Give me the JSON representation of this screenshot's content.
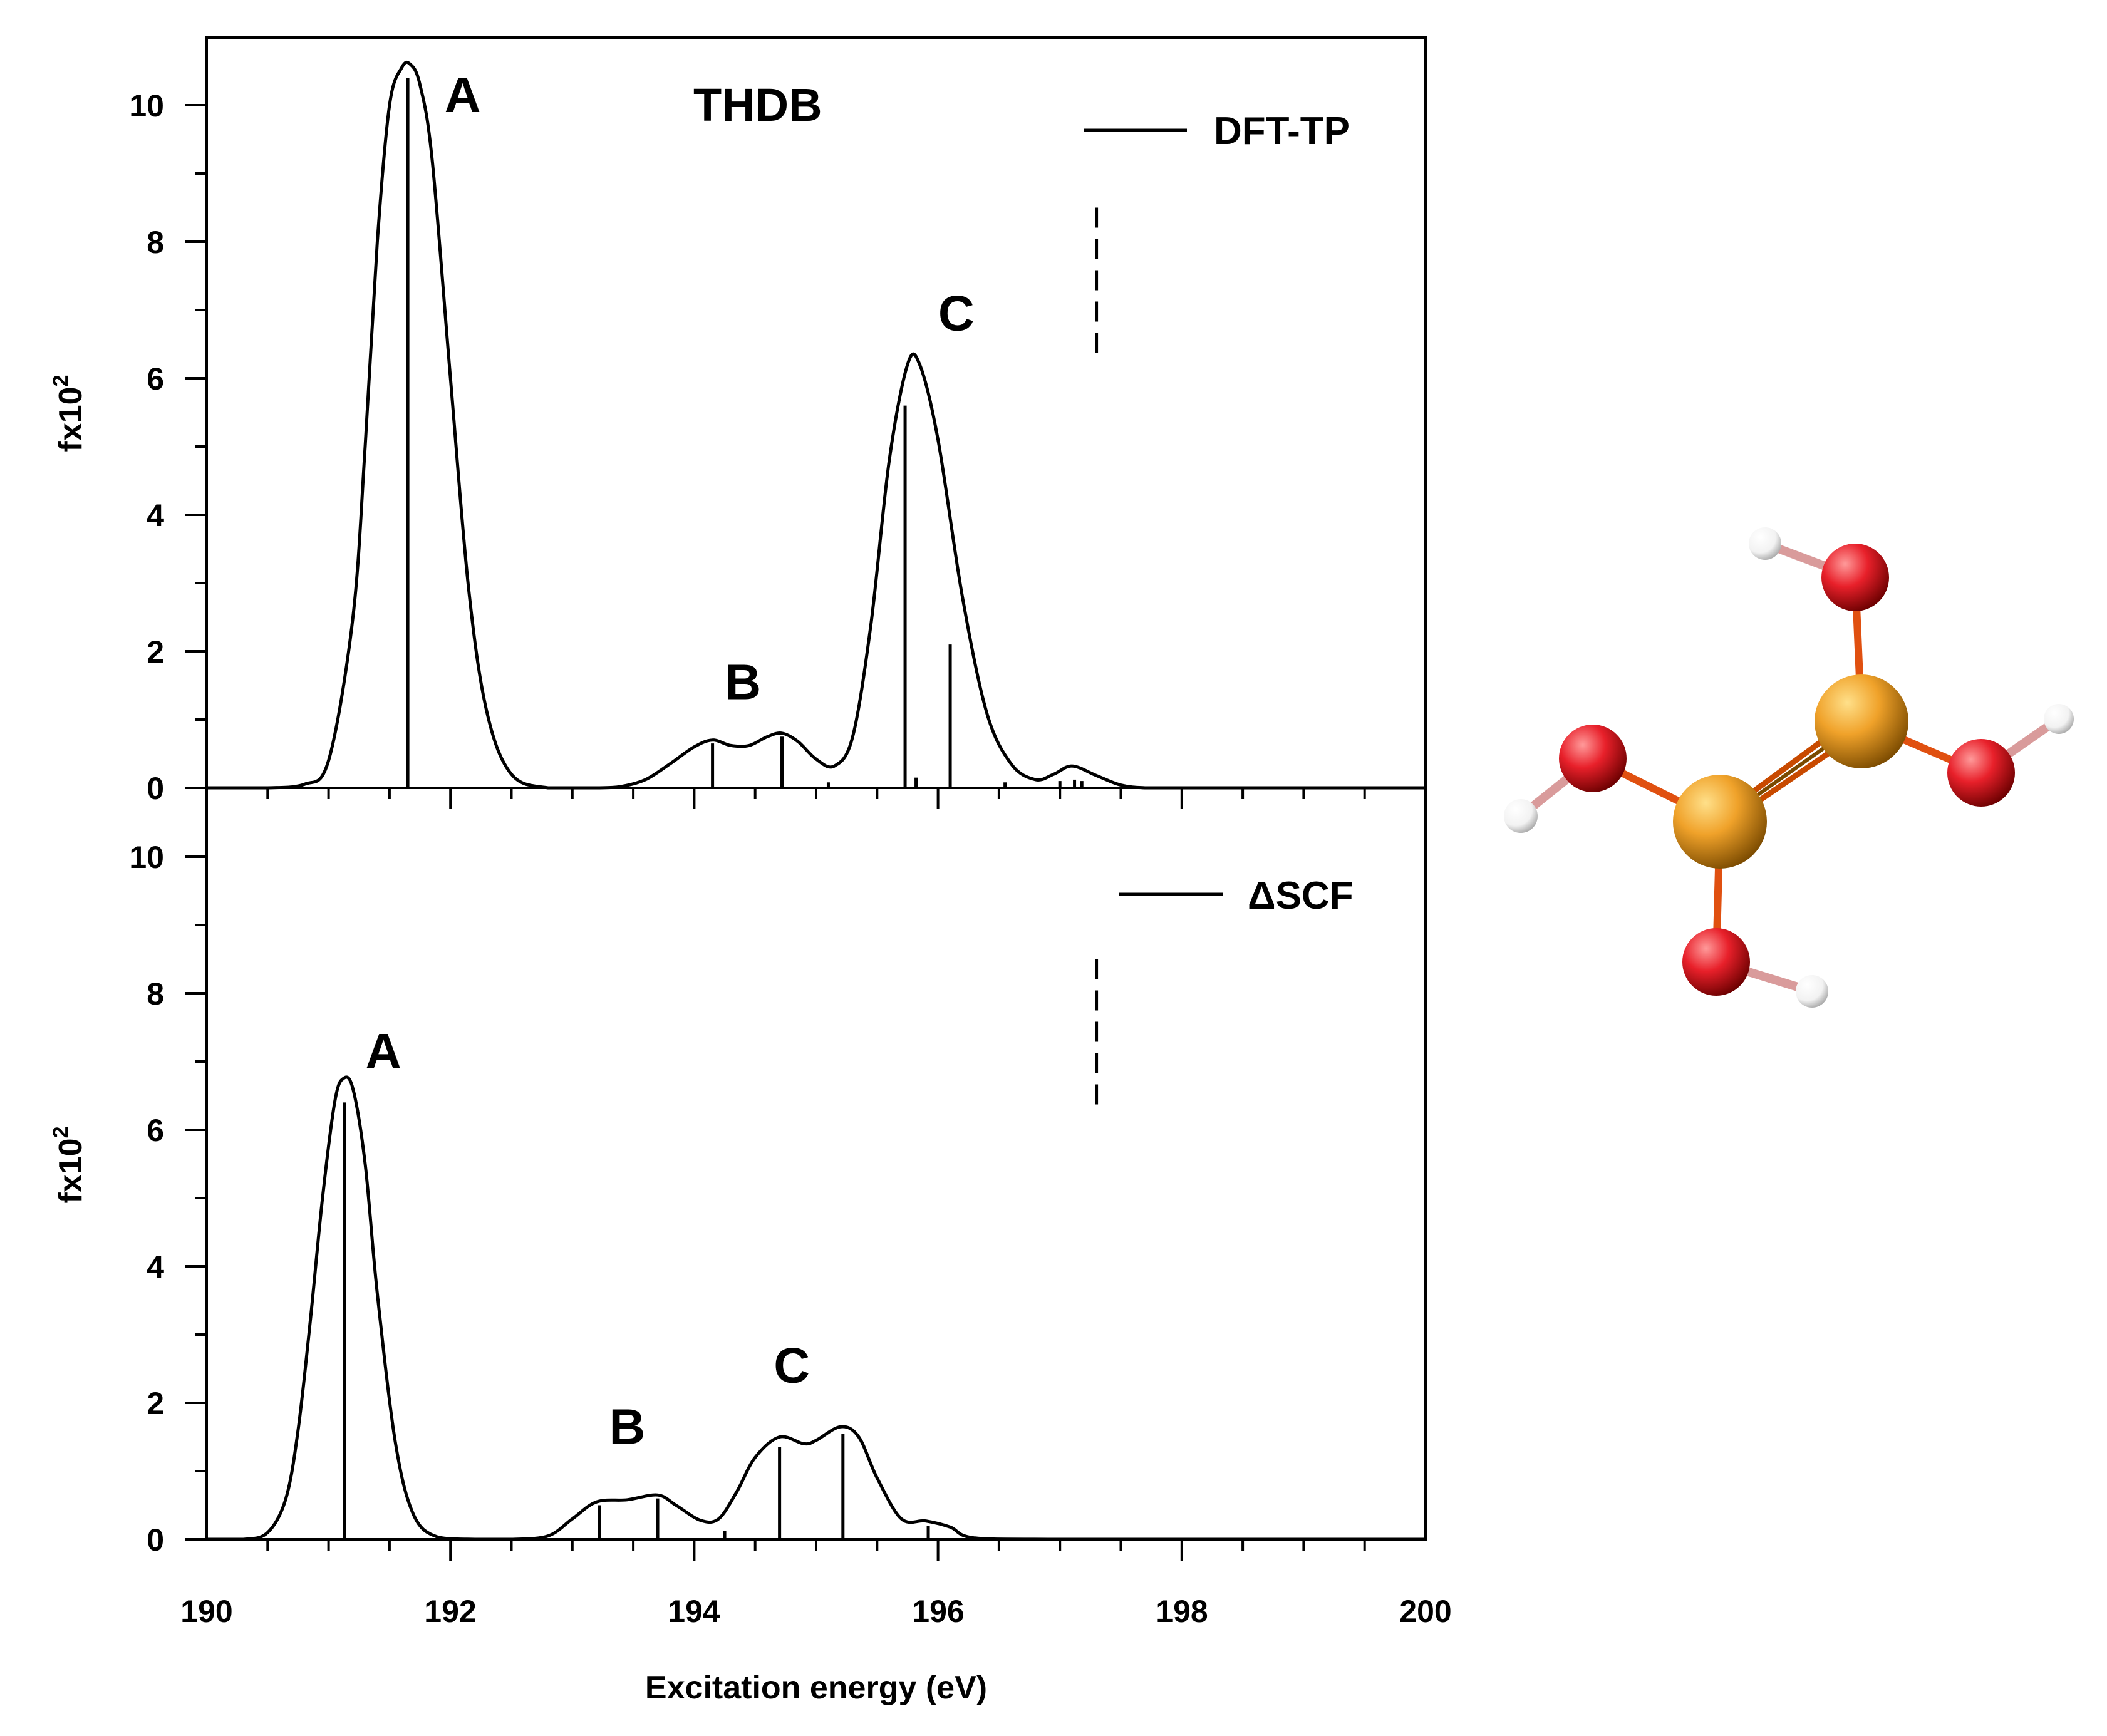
{
  "figure": {
    "title": "THDB",
    "xlabel": "Excitation energy (eV)",
    "x_tick_labels": [
      "190",
      "192",
      "194",
      "196",
      "198",
      "200"
    ],
    "y_tick_labels": [
      "0",
      "2",
      "4",
      "6",
      "8",
      "10"
    ],
    "ylabel_text": "fx10",
    "ylabel_exponent": "2"
  },
  "chart_data": [
    {
      "type": "line",
      "panel": "top",
      "title": "THDB",
      "legend": {
        "label": "DFT-TP",
        "placement": "top-right"
      },
      "xlabel": "Excitation energy (eV)",
      "ylabel": "fx10^2",
      "xlim": [
        190,
        200
      ],
      "ylim": [
        0,
        11
      ],
      "x_ticks": [
        190,
        192,
        194,
        196,
        198,
        200
      ],
      "y_ticks": [
        0,
        2,
        4,
        6,
        8,
        10
      ],
      "series": [
        {
          "name": "DFT-TP spectrum",
          "kind": "broadened_envelope",
          "x": [
            190.0,
            190.5,
            190.8,
            191.0,
            191.2,
            191.3,
            191.4,
            191.5,
            191.6,
            191.67,
            191.75,
            191.85,
            192.0,
            192.15,
            192.3,
            192.5,
            192.8,
            193.2,
            193.4,
            193.6,
            193.8,
            194.0,
            194.15,
            194.3,
            194.45,
            194.6,
            194.72,
            194.85,
            195.0,
            195.15,
            195.3,
            195.45,
            195.6,
            195.75,
            195.85,
            196.0,
            196.2,
            196.4,
            196.6,
            196.8,
            196.95,
            197.1,
            197.3,
            197.5,
            197.7,
            198.0,
            200.0
          ],
          "y": [
            0.0,
            0.0,
            0.05,
            0.4,
            2.5,
            5.0,
            8.0,
            10.0,
            10.55,
            10.6,
            10.3,
            9.2,
            6.0,
            2.9,
            1.1,
            0.2,
            0.0,
            0.0,
            0.02,
            0.12,
            0.35,
            0.6,
            0.7,
            0.62,
            0.62,
            0.75,
            0.8,
            0.68,
            0.42,
            0.32,
            0.75,
            2.4,
            4.8,
            6.2,
            6.2,
            5.1,
            2.8,
            1.1,
            0.35,
            0.12,
            0.2,
            0.32,
            0.18,
            0.04,
            0.0,
            0.0,
            0.0
          ]
        },
        {
          "name": "DFT-TP transitions",
          "kind": "stick",
          "x": [
            191.65,
            194.15,
            194.72,
            195.1,
            195.73,
            195.82,
            196.1,
            196.55,
            197.0,
            197.12,
            197.18
          ],
          "y": [
            10.4,
            0.65,
            0.75,
            0.08,
            5.6,
            0.15,
            2.1,
            0.08,
            0.1,
            0.12,
            0.1
          ]
        }
      ],
      "annotations": [
        {
          "text": "A",
          "x": 192.1,
          "y": 9.9
        },
        {
          "text": "B",
          "x": 194.4,
          "y": 1.3
        },
        {
          "text": "C",
          "x": 196.15,
          "y": 6.7
        }
      ],
      "ionization_potential_marker": {
        "x": 197.3,
        "y_range": [
          6.3,
          8.5
        ],
        "style": "dashed"
      }
    },
    {
      "type": "line",
      "panel": "bottom",
      "legend": {
        "label": "ΔSCF",
        "placement": "top-right"
      },
      "xlabel": "Excitation energy (eV)",
      "ylabel": "fx10^2",
      "xlim": [
        190,
        200
      ],
      "ylim": [
        0,
        11
      ],
      "x_ticks": [
        190,
        192,
        194,
        196,
        198,
        200
      ],
      "y_ticks": [
        0,
        2,
        4,
        6,
        8,
        10
      ],
      "series": [
        {
          "name": "ΔSCF spectrum",
          "kind": "broadened_envelope",
          "x": [
            190.0,
            190.3,
            190.5,
            190.65,
            190.75,
            190.85,
            190.95,
            191.05,
            191.12,
            191.2,
            191.3,
            191.4,
            191.55,
            191.7,
            191.9,
            192.2,
            192.5,
            192.8,
            193.0,
            193.2,
            193.45,
            193.7,
            193.85,
            194.05,
            194.2,
            194.35,
            194.5,
            194.7,
            194.9,
            195.0,
            195.2,
            195.35,
            195.5,
            195.7,
            195.9,
            196.1,
            196.3,
            197.0,
            200.0
          ],
          "y": [
            0.0,
            0.0,
            0.1,
            0.6,
            1.6,
            3.2,
            5.0,
            6.4,
            6.75,
            6.6,
            5.5,
            3.6,
            1.4,
            0.35,
            0.03,
            0.0,
            0.0,
            0.05,
            0.3,
            0.55,
            0.58,
            0.65,
            0.5,
            0.28,
            0.3,
            0.7,
            1.2,
            1.5,
            1.4,
            1.45,
            1.65,
            1.5,
            0.9,
            0.3,
            0.27,
            0.18,
            0.02,
            0.0,
            0.0
          ]
        },
        {
          "name": "ΔSCF transitions",
          "kind": "stick",
          "x": [
            191.13,
            193.22,
            193.7,
            194.25,
            194.7,
            195.22,
            195.92
          ],
          "y": [
            6.4,
            0.5,
            0.6,
            0.12,
            1.35,
            1.55,
            0.2
          ]
        }
      ],
      "annotations": [
        {
          "text": "A",
          "x": 191.45,
          "y": 6.9
        },
        {
          "text": "B",
          "x": 193.45,
          "y": 1.4
        },
        {
          "text": "C",
          "x": 194.8,
          "y": 2.3
        }
      ],
      "ionization_potential_marker": {
        "x": 197.3,
        "y_range": [
          6.3,
          8.5
        ],
        "style": "dashed"
      }
    }
  ],
  "molecule": {
    "name": "THDB",
    "colors": {
      "boron": "#f0a22a",
      "oxygen": "#e8202a",
      "hydrogen": "#ffffff",
      "bond": "#e05010"
    }
  }
}
